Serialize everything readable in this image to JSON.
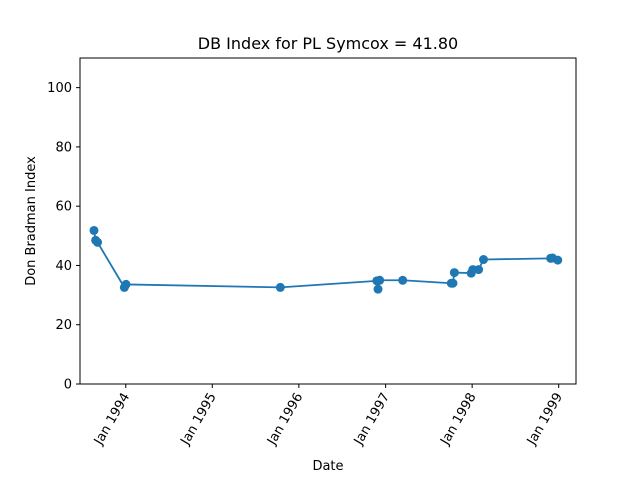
{
  "chart_data": {
    "type": "line",
    "title": "DB Index for PL Symcox = 41.80",
    "xlabel": "Date",
    "ylabel": "Don Bradman Index",
    "ylim": [
      0,
      110
    ],
    "yticks": [
      0,
      20,
      40,
      60,
      80,
      100
    ],
    "xlim": [
      "1993-06-22",
      "1999-03-15"
    ],
    "xticks": [
      {
        "date": "1994-01-01",
        "label": "Jan 1994"
      },
      {
        "date": "1995-01-01",
        "label": "Jan 1995"
      },
      {
        "date": "1996-01-01",
        "label": "Jan 1996"
      },
      {
        "date": "1997-01-01",
        "label": "Jan 1997"
      },
      {
        "date": "1998-01-01",
        "label": "Jan 1998"
      },
      {
        "date": "1999-01-01",
        "label": "Jan 1999"
      }
    ],
    "grid": false,
    "color": "#1f77b4",
    "series": [
      {
        "points": [
          {
            "x": "1993-08-20",
            "y": 51.8
          },
          {
            "x": "1993-08-27",
            "y": 48.5
          },
          {
            "x": "1993-09-04",
            "y": 47.8
          },
          {
            "x": "1993-12-26",
            "y": 32.6
          },
          {
            "x": "1994-01-02",
            "y": 33.6
          },
          {
            "x": "1995-10-15",
            "y": 32.6
          },
          {
            "x": "1996-11-25",
            "y": 34.8
          },
          {
            "x": "1996-11-30",
            "y": 32.0
          },
          {
            "x": "1996-12-07",
            "y": 35.0
          },
          {
            "x": "1997-03-14",
            "y": 35.0
          },
          {
            "x": "1997-10-05",
            "y": 34.0
          },
          {
            "x": "1997-10-12",
            "y": 34.0
          },
          {
            "x": "1997-10-18",
            "y": 37.6
          },
          {
            "x": "1997-12-28",
            "y": 37.4
          },
          {
            "x": "1998-01-04",
            "y": 38.6
          },
          {
            "x": "1998-01-28",
            "y": 38.6
          },
          {
            "x": "1998-02-18",
            "y": 42.0
          },
          {
            "x": "1998-11-28",
            "y": 42.4
          },
          {
            "x": "1998-12-06",
            "y": 42.5
          },
          {
            "x": "1998-12-28",
            "y": 41.8
          }
        ]
      }
    ]
  }
}
